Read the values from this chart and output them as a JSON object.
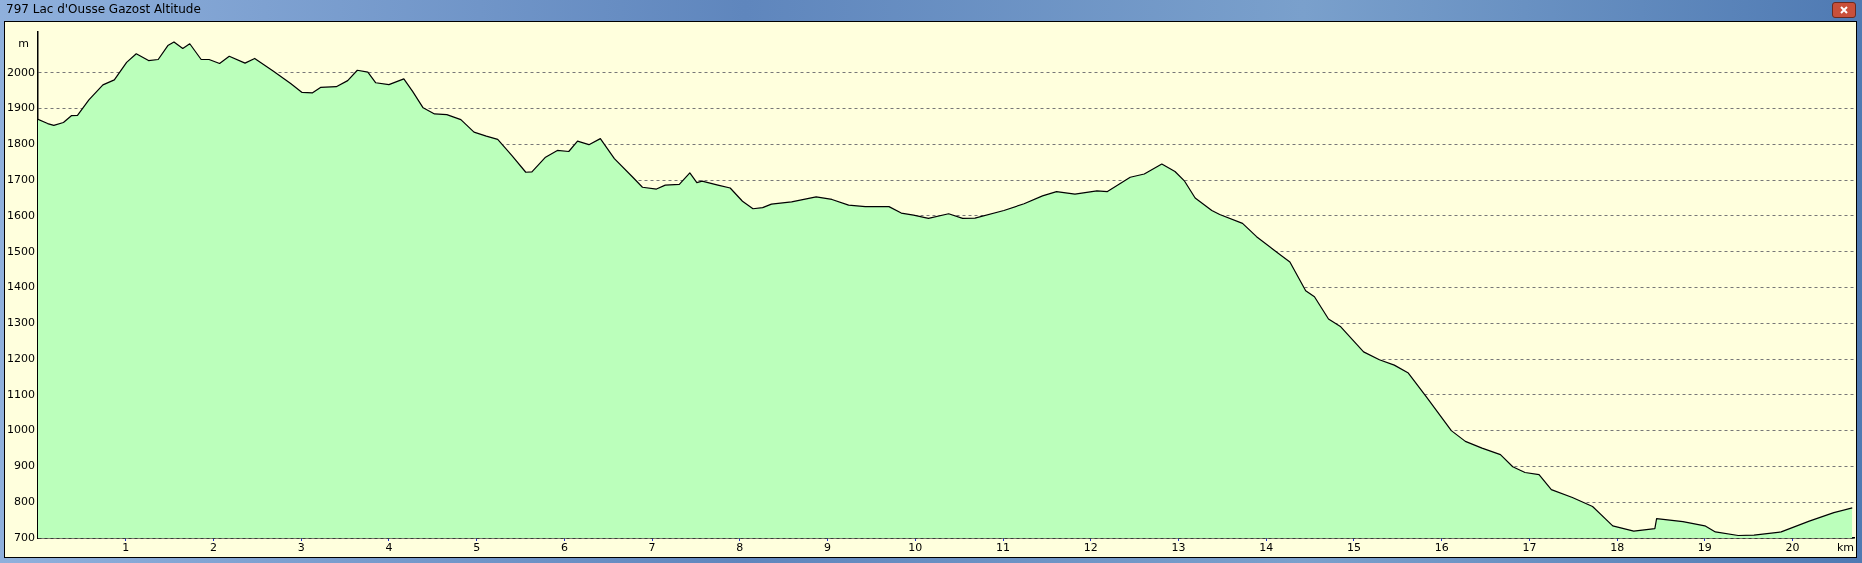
{
  "chart_data": {
    "type": "area",
    "title": "797 Lac d'Ousse Gazost Altitude",
    "xlabel": "km",
    "ylabel": "m",
    "grid": "y",
    "legend": false,
    "xlim": [
      0,
      20.7
    ],
    "ylim": [
      700,
      2115
    ],
    "xticks": [
      1,
      2,
      3,
      4,
      5,
      6,
      7,
      8,
      9,
      10,
      11,
      12,
      13,
      14,
      15,
      16,
      17,
      18,
      19,
      20
    ],
    "yticks": [
      700,
      800,
      900,
      1000,
      1100,
      1200,
      1300,
      1400,
      1500,
      1600,
      1700,
      1800,
      1900,
      2000
    ],
    "series": [
      {
        "color": "#bbffbb",
        "x": [
          0,
          0.11,
          0.18,
          0.29,
          0.38,
          0.45,
          0.58,
          0.74,
          0.87,
          1.01,
          1.12,
          1.26,
          1.37,
          1.48,
          1.55,
          1.65,
          1.73,
          1.86,
          1.95,
          2.07,
          2.18,
          2.36,
          2.47,
          2.68,
          2.88,
          3.01,
          3.13,
          3.22,
          3.4,
          3.53,
          3.64,
          3.76,
          3.85,
          4.0,
          4.17,
          4.27,
          4.39,
          4.52,
          4.66,
          4.82,
          4.97,
          5.11,
          5.24,
          5.4,
          5.56,
          5.63,
          5.78,
          5.92,
          6.05,
          6.15,
          6.28,
          6.41,
          6.57,
          6.78,
          6.89,
          7.05,
          7.15,
          7.31,
          7.43,
          7.51,
          7.57,
          7.75,
          7.89,
          8.03,
          8.15,
          8.26,
          8.36,
          8.59,
          8.87,
          9.05,
          9.24,
          9.43,
          9.7,
          9.84,
          9.98,
          10.15,
          10.38,
          10.54,
          10.68,
          11.01,
          11.24,
          11.45,
          11.61,
          11.82,
          12.07,
          12.19,
          12.45,
          12.61,
          12.81,
          12.96,
          13.07,
          13.19,
          13.38,
          13.47,
          13.73,
          13.89,
          14.08,
          14.27,
          14.45,
          14.55,
          14.71,
          14.85,
          15.11,
          15.29,
          15.46,
          15.62,
          15.83,
          16.11,
          16.27,
          16.46,
          16.67,
          16.81,
          16.95,
          17.11,
          17.25,
          17.49,
          17.72,
          17.95,
          18.19,
          18.43,
          18.45,
          18.75,
          19.0,
          19.12,
          19.38,
          19.56,
          19.87,
          20.19,
          20.47,
          20.68
        ],
        "values": [
          1870,
          1858,
          1853,
          1861,
          1880,
          1881,
          1924,
          1966,
          1980,
          2029,
          2053,
          2034,
          2037,
          2076,
          2086,
          2068,
          2081,
          2037,
          2037,
          2026,
          2046,
          2027,
          2040,
          2005,
          1970,
          1945,
          1944,
          1959,
          1961,
          1978,
          2007,
          2002,
          1972,
          1967,
          1983,
          1948,
          1902,
          1885,
          1883,
          1869,
          1834,
          1823,
          1814,
          1769,
          1722,
          1723,
          1763,
          1783,
          1780,
          1809,
          1799,
          1816,
          1760,
          1708,
          1680,
          1675,
          1686,
          1688,
          1720,
          1693,
          1697,
          1686,
          1678,
          1641,
          1620,
          1623,
          1633,
          1639,
          1653,
          1646,
          1630,
          1626,
          1626,
          1608,
          1602,
          1593,
          1606,
          1593,
          1594,
          1615,
          1634,
          1656,
          1668,
          1661,
          1670,
          1668,
          1708,
          1717,
          1745,
          1724,
          1697,
          1650,
          1615,
          1604,
          1579,
          1542,
          1506,
          1471,
          1391,
          1374,
          1312,
          1290,
          1220,
          1198,
          1183,
          1161,
          1093,
          1000,
          970,
          951,
          933,
          899,
          883,
          877,
          835,
          813,
          788,
          734,
          719,
          726,
          754,
          746,
          734,
          717,
          707,
          708,
          717,
          747,
          771,
          784
        ]
      }
    ]
  }
}
